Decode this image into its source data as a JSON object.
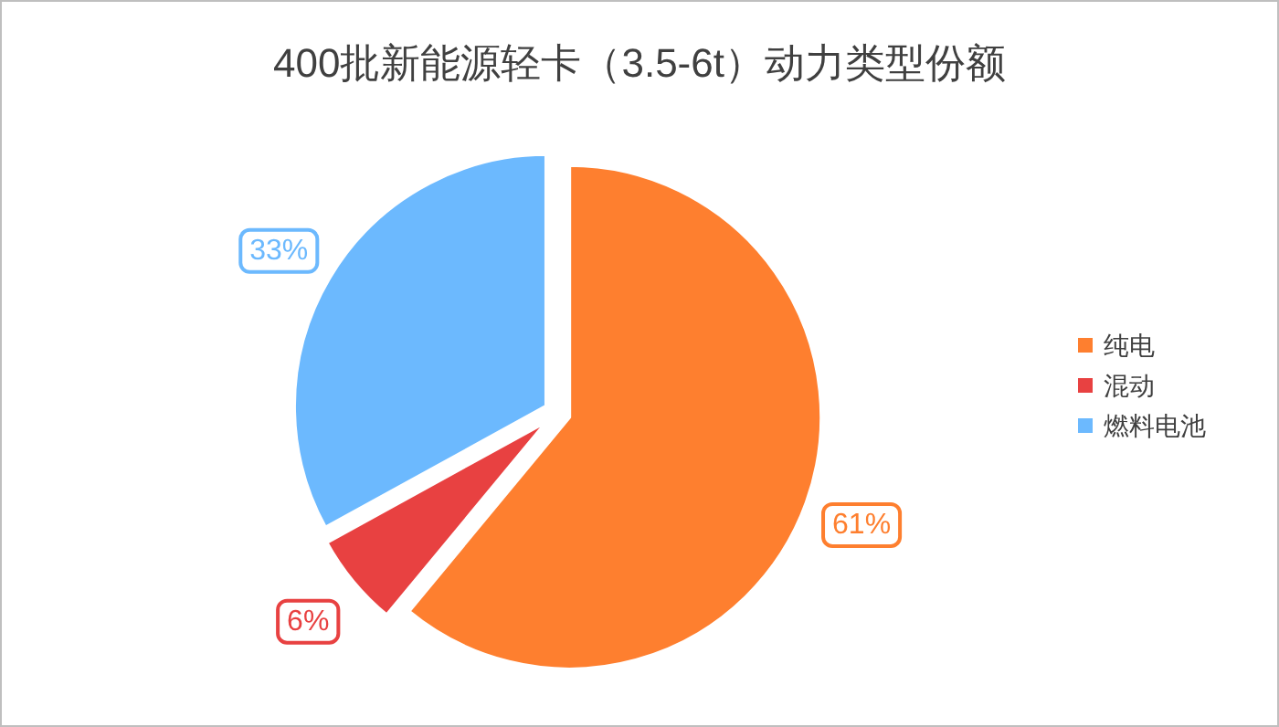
{
  "chart_data": {
    "type": "pie",
    "title": "400批新能源轻卡（3.5-6t）动力类型份额",
    "categories": [
      "纯电",
      "混动",
      "燃料电池"
    ],
    "values": [
      61,
      6,
      33
    ],
    "colors": [
      "#fe7f2f",
      "#e84141",
      "#6cb9fe"
    ],
    "value_labels": [
      "61%",
      "6%",
      "33%"
    ],
    "legend": "right"
  }
}
